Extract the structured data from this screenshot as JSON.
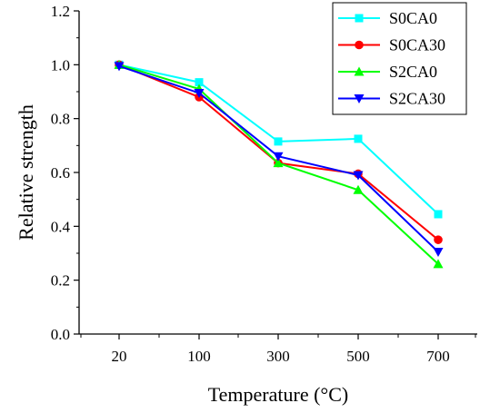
{
  "chart_data": {
    "type": "line",
    "categories": [
      "20",
      "100",
      "300",
      "500",
      "700"
    ],
    "xlabel": "Temperature (°C)",
    "ylabel": "Relative strength",
    "ylim": [
      0,
      1.2
    ],
    "yticks": [
      "0.0",
      "0.2",
      "0.4",
      "0.6",
      "0.8",
      "1.0",
      "1.2"
    ],
    "ytick_values": [
      0,
      0.2,
      0.4,
      0.6,
      0.8,
      1.0,
      1.2
    ],
    "grid": false,
    "legend_position": "top-right",
    "series": [
      {
        "name": "S0CA0",
        "values": [
          1.0,
          0.935,
          0.715,
          0.725,
          0.445
        ],
        "color": "#00ffff",
        "marker": "square"
      },
      {
        "name": "S0CA30",
        "values": [
          1.0,
          0.88,
          0.635,
          0.595,
          0.35
        ],
        "color": "#ff0000",
        "marker": "circle"
      },
      {
        "name": "S2CA0",
        "values": [
          1.0,
          0.91,
          0.635,
          0.535,
          0.26
        ],
        "color": "#00ff00",
        "marker": "triangle-up"
      },
      {
        "name": "S2CA30",
        "values": [
          0.995,
          0.895,
          0.66,
          0.59,
          0.305
        ],
        "color": "#0000ff",
        "marker": "triangle-down"
      }
    ]
  }
}
